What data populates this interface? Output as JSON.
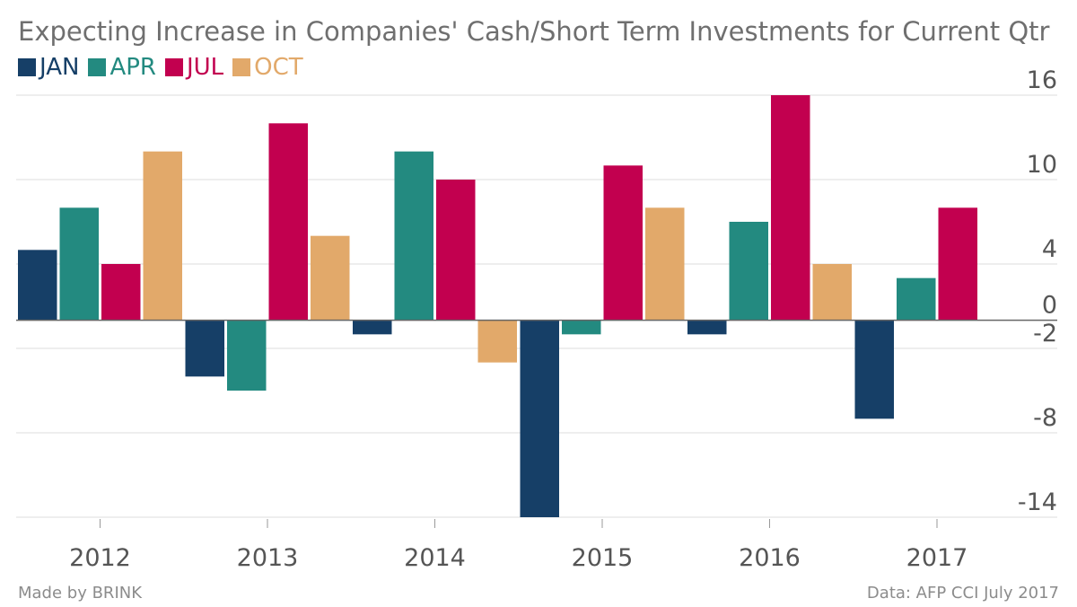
{
  "title": "Expecting Increase in Companies' Cash/Short Term Investments for Current Qtr",
  "footer": {
    "left": "Made by BRINK",
    "right": "Data: AFP CCI July 2017"
  },
  "chart_data": {
    "type": "bar",
    "title": "Expecting Increase in Companies' Cash/Short Term Investments for Current Qtr",
    "categories": [
      "2012",
      "2013",
      "2014",
      "2015",
      "2016",
      "2017"
    ],
    "series": [
      {
        "name": "JAN",
        "color": "#163f67",
        "values": [
          5,
          -4,
          -1,
          -14,
          -1,
          -7
        ]
      },
      {
        "name": "APR",
        "color": "#238a80",
        "values": [
          8,
          -5,
          12,
          -1,
          7,
          3
        ]
      },
      {
        "name": "JUL",
        "color": "#c2004f",
        "values": [
          4,
          14,
          10,
          11,
          16,
          8
        ]
      },
      {
        "name": "OCT",
        "color": "#e2a96a",
        "values": [
          12,
          6,
          -3,
          8,
          4,
          null
        ]
      }
    ],
    "y_ticks": [
      16,
      10,
      4,
      0,
      -2,
      -8,
      -14
    ],
    "ylim": [
      -14,
      16
    ],
    "grid": true,
    "y_axis_position": "right",
    "legend_position": "top-left"
  }
}
